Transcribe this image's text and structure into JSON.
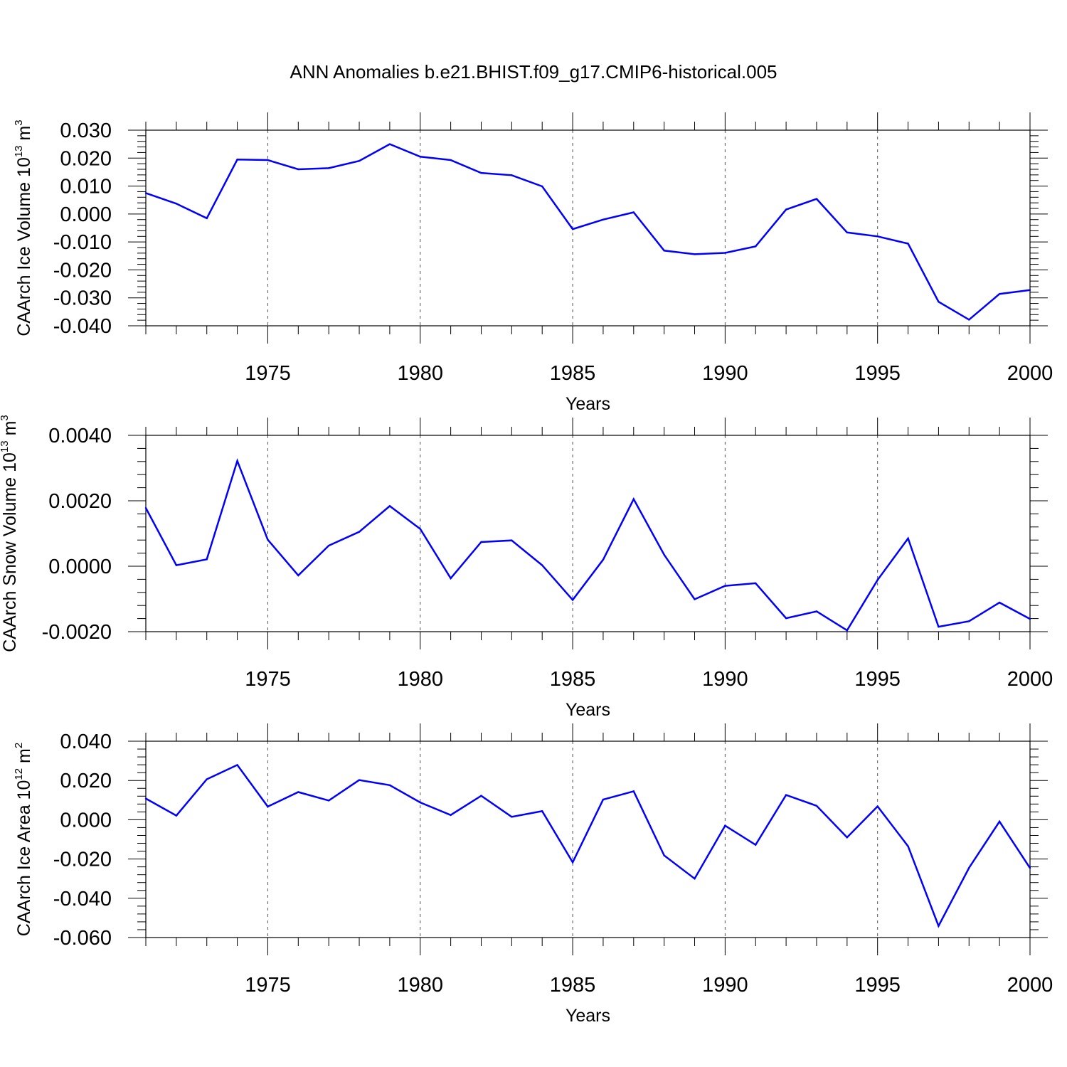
{
  "title": "ANN Anomalies b.e21.BHIST.f09_g17.CMIP6-historical.005",
  "colors": {
    "line": "#0000ff",
    "axis": "#000000",
    "grid": "#555555"
  },
  "chart_data": [
    {
      "type": "line",
      "ylabel": {
        "base": "CAArch Ice Volume 10",
        "exp": "13",
        "unit": " m",
        "unit_exp": "3"
      },
      "xlabel": "Years",
      "xlim": [
        1971,
        2000
      ],
      "ylim": [
        -0.04,
        0.03
      ],
      "yticks": [
        0.03,
        0.02,
        0.01,
        0.0,
        -0.01,
        -0.02,
        -0.03,
        -0.04
      ],
      "ytick_labels": [
        "0.030",
        "0.020",
        "0.010",
        "0.000",
        "-0.010",
        "-0.020",
        "-0.030",
        "-0.040"
      ],
      "xticks": [
        1975,
        1980,
        1985,
        1990,
        1995,
        2000
      ],
      "xtick_labels": [
        "1975",
        "1980",
        "1985",
        "1990",
        "1995",
        "2000"
      ],
      "grid": "vertical dashed at labeled years",
      "x": [
        1971,
        1972,
        1973,
        1974,
        1975,
        1976,
        1977,
        1978,
        1979,
        1980,
        1981,
        1982,
        1983,
        1984,
        1985,
        1986,
        1987,
        1988,
        1989,
        1990,
        1991,
        1992,
        1993,
        1994,
        1995,
        1996,
        1997,
        1998,
        1999,
        2000
      ],
      "values": [
        0.0075,
        0.0037,
        -0.0015,
        0.0195,
        0.0193,
        0.016,
        0.0164,
        0.019,
        0.025,
        0.0205,
        0.0193,
        0.0147,
        0.0139,
        0.0099,
        -0.0054,
        -0.002,
        0.0006,
        -0.0131,
        -0.0144,
        -0.0139,
        -0.0116,
        0.0016,
        0.0054,
        -0.0066,
        -0.008,
        -0.0106,
        -0.0314,
        -0.0378,
        -0.0286,
        -0.0272
      ]
    },
    {
      "type": "line",
      "ylabel": {
        "base": "CAArch Snow Volume 10",
        "exp": "13",
        "unit": " m",
        "unit_exp": "3"
      },
      "xlabel": "Years",
      "xlim": [
        1971,
        2000
      ],
      "ylim": [
        -0.002,
        0.004
      ],
      "yticks": [
        0.004,
        0.002,
        0.0,
        -0.002
      ],
      "ytick_labels": [
        "0.0040",
        "0.0020",
        "0.0000",
        "-0.0020"
      ],
      "xticks": [
        1975,
        1980,
        1985,
        1990,
        1995,
        2000
      ],
      "xtick_labels": [
        "1975",
        "1980",
        "1985",
        "1990",
        "1995",
        "2000"
      ],
      "grid": "vertical dashed at labeled years",
      "x": [
        1971,
        1972,
        1973,
        1974,
        1975,
        1976,
        1977,
        1978,
        1979,
        1980,
        1981,
        1982,
        1983,
        1984,
        1985,
        1986,
        1987,
        1988,
        1989,
        1990,
        1991,
        1992,
        1993,
        1994,
        1995,
        1996,
        1997,
        1998,
        1999,
        2000
      ],
      "values": [
        0.00178,
        3e-05,
        0.00021,
        0.00322,
        0.00081,
        -0.00028,
        0.00063,
        0.00105,
        0.00184,
        0.00114,
        -0.00037,
        0.00074,
        0.00079,
        3e-05,
        -0.00103,
        0.0002,
        0.00205,
        0.00035,
        -0.00101,
        -0.0006,
        -0.00052,
        -0.00159,
        -0.00138,
        -0.00196,
        -0.00042,
        0.00085,
        -0.00185,
        -0.00168,
        -0.00111,
        -0.00161
      ]
    },
    {
      "type": "line",
      "ylabel": {
        "base": "CAArch Ice Area 10",
        "exp": "12",
        "unit": " m",
        "unit_exp": "2"
      },
      "xlabel": "Years",
      "xlim": [
        1971,
        2000
      ],
      "ylim": [
        -0.06,
        0.04
      ],
      "yticks": [
        0.04,
        0.02,
        0.0,
        -0.02,
        -0.04,
        -0.06
      ],
      "ytick_labels": [
        "0.040",
        "0.020",
        "0.000",
        "-0.020",
        "-0.040",
        "-0.060"
      ],
      "xticks": [
        1975,
        1980,
        1985,
        1990,
        1995,
        2000
      ],
      "xtick_labels": [
        "1975",
        "1980",
        "1985",
        "1990",
        "1995",
        "2000"
      ],
      "grid": "vertical dashed at labeled years",
      "x": [
        1971,
        1972,
        1973,
        1974,
        1975,
        1976,
        1977,
        1978,
        1979,
        1980,
        1981,
        1982,
        1983,
        1984,
        1985,
        1986,
        1987,
        1988,
        1989,
        1990,
        1991,
        1992,
        1993,
        1994,
        1995,
        1996,
        1997,
        1998,
        1999,
        2000
      ],
      "values": [
        0.0108,
        0.0021,
        0.0206,
        0.0279,
        0.0067,
        0.0141,
        0.0098,
        0.0202,
        0.0176,
        0.0088,
        0.0024,
        0.0122,
        0.0015,
        0.0044,
        -0.0217,
        0.0103,
        0.0145,
        -0.0182,
        -0.03,
        -0.003,
        -0.0128,
        0.0126,
        0.0071,
        -0.009,
        0.0068,
        -0.0135,
        -0.0541,
        -0.0245,
        -0.0009,
        -0.0246
      ]
    }
  ]
}
